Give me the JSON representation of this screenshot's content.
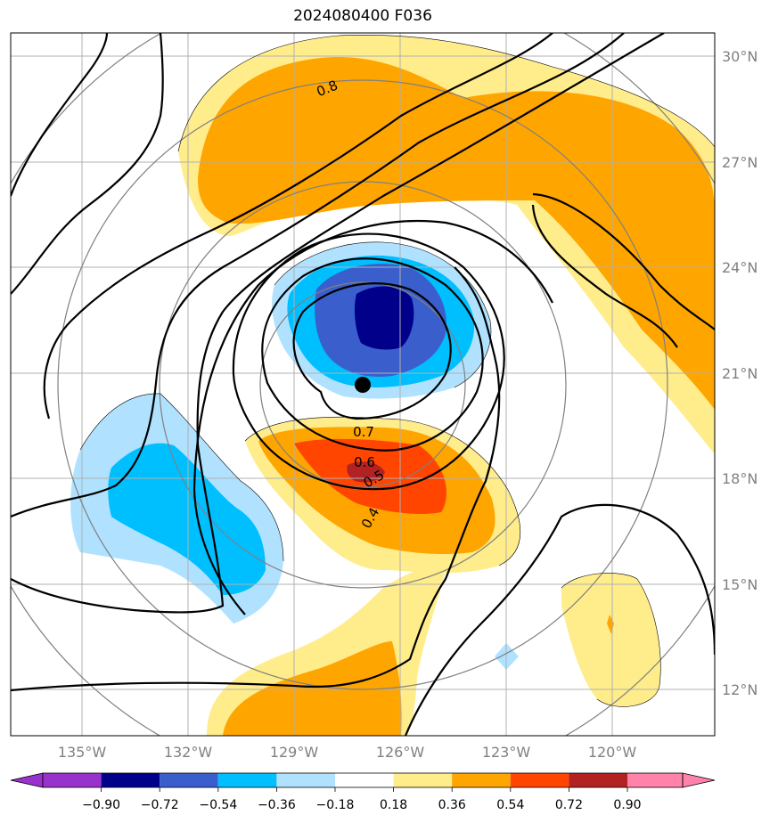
{
  "title": "2024080400 F036",
  "colors": {
    "neg_090": "#9932CC",
    "neg_072": "#00008B",
    "neg_054": "#3A5FCD",
    "neg_036": "#00BFFF",
    "neg_018": "#B0E2FF",
    "neutral": "#FFFFFF",
    "pos_018": "#FFEC8B",
    "pos_036": "#FFA500",
    "pos_054": "#FF4500",
    "pos_072": "#B22222",
    "pos_090": "#FF82AB",
    "contour": "#000000",
    "range_ring": "#808080",
    "grid": "#b0b0b0"
  },
  "lon_labels": [
    "135°W",
    "132°W",
    "129°W",
    "126°W",
    "123°W",
    "120°W"
  ],
  "lat_labels": [
    "30°N",
    "27°N",
    "24°N",
    "21°N",
    "18°N",
    "15°N",
    "12°N"
  ],
  "colorbar": {
    "ticks": [
      "−0.90",
      "−0.72",
      "−0.54",
      "−0.36",
      "−0.18",
      "0.18",
      "0.36",
      "0.54",
      "0.72",
      "0.90"
    ]
  },
  "contour_labels": [
    "0.8",
    "0.7",
    "0.6",
    "0.5",
    "0.4"
  ],
  "storm_center": {
    "lon": -127.2,
    "lat": 20.7
  }
}
